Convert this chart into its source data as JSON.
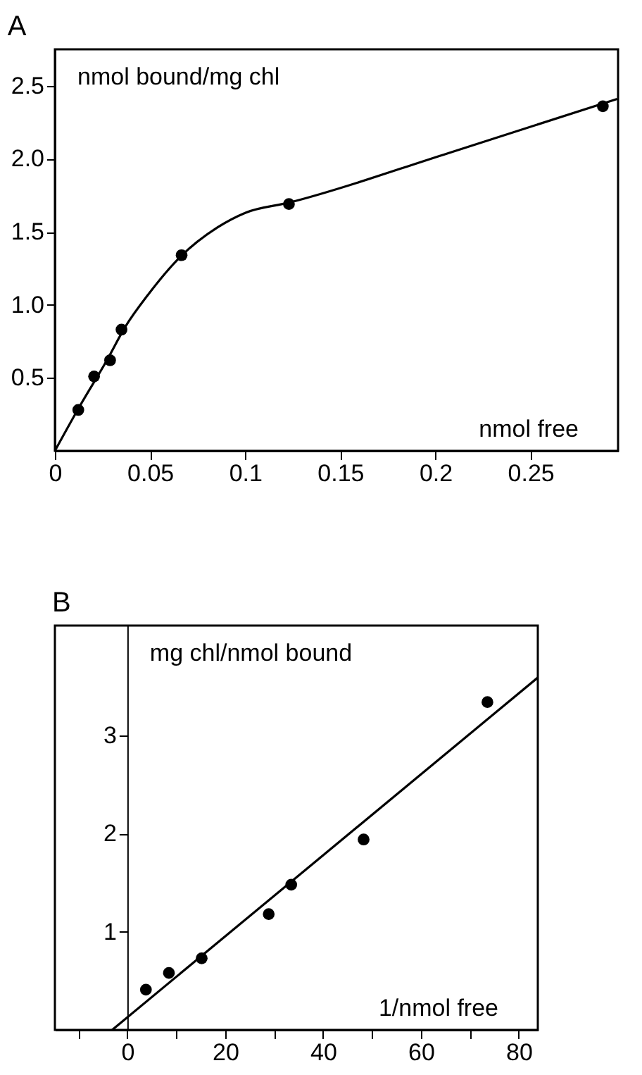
{
  "chart_data": [
    {
      "type": "scatter",
      "title": "A",
      "xlabel": "nmol free",
      "ylabel": "nmol bound/mg chl",
      "xlim": [
        0,
        0.296
      ],
      "ylim": [
        0,
        2.75
      ],
      "xticks": [
        0,
        0.05,
        0.1,
        0.15,
        0.2,
        0.25
      ],
      "yticks": [
        0.5,
        {
          "value": 1,
          "label": "1.0"
        },
        1.5,
        {
          "value": 2,
          "label": "2.0"
        },
        2.5
      ],
      "grid": false,
      "legend": false,
      "series": [
        {
          "type": "scatter",
          "marker": "circle",
          "color": "#000000",
          "x": [
            0.0123,
            0.0206,
            0.029,
            0.035,
            0.0666,
            0.123,
            0.288
          ],
          "values": [
            0.28,
            0.51,
            0.62,
            0.83,
            1.34,
            1.69,
            2.36
          ]
        },
        {
          "type": "line",
          "line_style": "solid",
          "color": "#000000",
          "x": [
            0,
            0.0128,
            0.0273,
            0.037,
            0.049,
            0.066,
            0.0854,
            0.1,
            0.123,
            0.207,
            0.2955
          ],
          "values": [
            0,
            0.3,
            0.62,
            0.85,
            1.07,
            1.33,
            1.53,
            1.63,
            1.7,
            2.04,
            2.41
          ]
        }
      ]
    },
    {
      "type": "scatter",
      "title": "B",
      "xlabel": "1/nmol free",
      "ylabel": "mg chl/nmol bound",
      "xlim": [
        -14.8,
        83.9
      ],
      "ylim": [
        0,
        4.12
      ],
      "xticks": [
        {
          "value": -10,
          "label": null
        },
        0,
        {
          "value": 10,
          "label": null
        },
        20,
        {
          "value": 30,
          "label": null
        },
        40,
        {
          "value": 50,
          "label": null
        },
        60,
        {
          "value": 70,
          "label": null
        },
        80
      ],
      "yticks": [
        1,
        2,
        3
      ],
      "grid": false,
      "legend": false,
      "series": [
        {
          "type": "scatter",
          "marker": "circle",
          "color": "#000000",
          "x": [
            3.8,
            8.5,
            15.2,
            28.9,
            33.5,
            48.3,
            73.6
          ],
          "values": [
            0.41,
            0.58,
            0.73,
            1.18,
            1.48,
            1.94,
            3.34
          ]
        },
        {
          "type": "line",
          "line_style": "solid",
          "color": "#000000",
          "x": [
            -3.1,
            83.9
          ],
          "values": [
            0,
            3.59
          ]
        }
      ]
    }
  ]
}
